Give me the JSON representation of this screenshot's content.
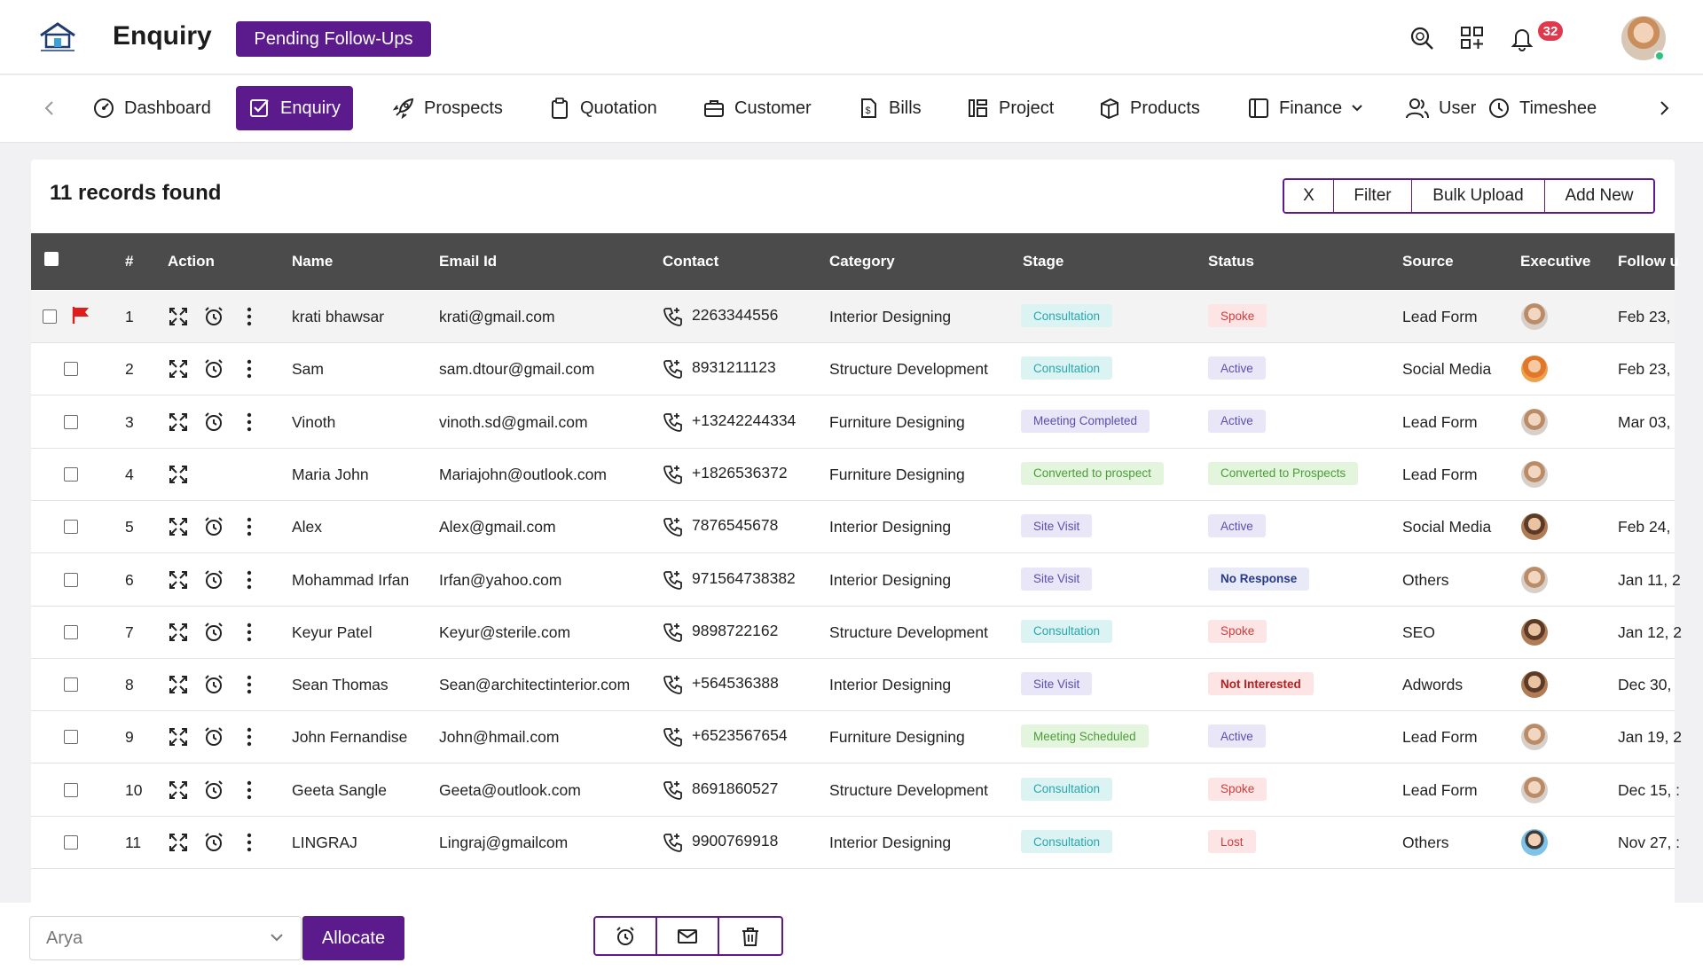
{
  "header": {
    "title": "Enquiry",
    "pending_label": "Pending Follow-Ups",
    "notification_count": "32",
    "brand_color": "#5c1b8c"
  },
  "nav": {
    "items": [
      {
        "label": "Dashboard",
        "icon": "dashboard-icon"
      },
      {
        "label": "Enquiry",
        "icon": "checkbox-icon",
        "active": true
      },
      {
        "label": "Prospects",
        "icon": "rocket-icon"
      },
      {
        "label": "Quotation",
        "icon": "clipboard-icon"
      },
      {
        "label": "Customer",
        "icon": "briefcase-icon"
      },
      {
        "label": "Bills",
        "icon": "bill-icon"
      },
      {
        "label": "Project",
        "icon": "project-icon"
      },
      {
        "label": "Products",
        "icon": "products-icon"
      },
      {
        "label": "Finance",
        "icon": "finance-icon"
      },
      {
        "label": "User",
        "icon": "users-icon"
      },
      {
        "label": "Timeshee",
        "icon": "clock-icon"
      }
    ]
  },
  "toolbar": {
    "records_text": "11 records found",
    "clear_label": "X",
    "filter_label": "Filter",
    "bulk_upload_label": "Bulk Upload",
    "add_new_label": "Add New"
  },
  "table": {
    "columns": [
      "#",
      "Action",
      "Name",
      "Email Id",
      "Contact",
      "Category",
      "Stage",
      "Status",
      "Source",
      "Executive",
      "Follow u"
    ],
    "rows": [
      {
        "num": "1",
        "name": "krati bhawsar",
        "email": "krati@gmail.com",
        "contact": "2263344556",
        "category": "Interior Designing",
        "stage": "Consultation",
        "stage_style": "teal",
        "status": "Spoke",
        "status_style": "red",
        "source": "Lead Form",
        "follow": "Feb 23,",
        "flagged": true,
        "reminder": true,
        "avatar": "female"
      },
      {
        "num": "2",
        "name": "Sam",
        "email": "sam.dtour@gmail.com",
        "contact": "8931211123",
        "category": "Structure Development",
        "stage": "Consultation",
        "stage_style": "teal",
        "status": "Active",
        "status_style": "purple",
        "source": "Social Media",
        "follow": "Feb 23,",
        "reminder": true,
        "avatar": "orange"
      },
      {
        "num": "3",
        "name": "Vinoth",
        "email": "vinoth.sd@gmail.com",
        "contact": "+13242244334",
        "category": "Furniture Designing",
        "stage": "Meeting Completed",
        "stage_style": "purple",
        "status": "Active",
        "status_style": "purple",
        "source": "Lead Form",
        "follow": "Mar 03,",
        "reminder": true,
        "avatar": "female"
      },
      {
        "num": "4",
        "name": "Maria John",
        "email": "Mariajohn@outlook.com",
        "contact": "+1826536372",
        "category": "Furniture Designing",
        "stage": "Converted to prospect",
        "stage_style": "green",
        "status": "Converted to Prospects",
        "status_style": "green",
        "source": "Lead Form",
        "follow": "",
        "reminder": false,
        "avatar": "female"
      },
      {
        "num": "5",
        "name": "Alex",
        "email": "Alex@gmail.com",
        "contact": "7876545678",
        "category": "Interior Designing",
        "stage": "Site Visit",
        "stage_style": "purple",
        "status": "Active",
        "status_style": "purple",
        "source": "Social Media",
        "follow": "Feb 24,",
        "reminder": true,
        "avatar": "male"
      },
      {
        "num": "6",
        "name": "Mohammad Irfan",
        "email": "Irfan@yahoo.com",
        "contact": "971564738382",
        "category": "Interior Designing",
        "stage": "Site Visit",
        "stage_style": "purple",
        "status": "No Response",
        "status_style": "navy",
        "source": "Others",
        "follow": "Jan 11, 2",
        "reminder": true,
        "avatar": "female"
      },
      {
        "num": "7",
        "name": "Keyur Patel",
        "email": "Keyur@sterile.com",
        "contact": "9898722162",
        "category": "Structure Development",
        "stage": "Consultation",
        "stage_style": "teal",
        "status": "Spoke",
        "status_style": "red",
        "source": "SEO",
        "follow": "Jan 12, 2",
        "reminder": true,
        "avatar": "male"
      },
      {
        "num": "8",
        "name": "Sean Thomas",
        "email": "Sean@architectinterior.com",
        "contact": "+564536388",
        "category": "Interior Designing",
        "stage": "Site Visit",
        "stage_style": "purple",
        "status": "Not Interested",
        "status_style": "redb",
        "source": "Adwords",
        "follow": "Dec 30,",
        "reminder": true,
        "avatar": "male"
      },
      {
        "num": "9",
        "name": "John Fernandise",
        "email": "John@hmail.com",
        "contact": "+6523567654",
        "category": "Furniture Designing",
        "stage": "Meeting Scheduled",
        "stage_style": "green",
        "status": "Active",
        "status_style": "purple",
        "source": "Lead Form",
        "follow": "Jan 19, 2",
        "reminder": true,
        "avatar": "female"
      },
      {
        "num": "10",
        "name": "Geeta Sangle",
        "email": "Geeta@outlook.com",
        "contact": "8691860527",
        "category": "Structure Development",
        "stage": "Consultation",
        "stage_style": "teal",
        "status": "Spoke",
        "status_style": "red",
        "source": "Lead Form",
        "follow": "Dec 15, :",
        "reminder": true,
        "avatar": "female"
      },
      {
        "num": "11",
        "name": "LINGRAJ",
        "email": "Lingraj@gmailcom",
        "contact": "9900769918",
        "category": "Interior Designing",
        "stage": "Consultation",
        "stage_style": "teal",
        "status": "Lost",
        "status_style": "red",
        "source": "Others",
        "follow": "Nov 27, :",
        "reminder": true,
        "avatar": "blue"
      }
    ]
  },
  "bottom": {
    "executive_selected": "Arya",
    "allocate_label": "Allocate"
  }
}
